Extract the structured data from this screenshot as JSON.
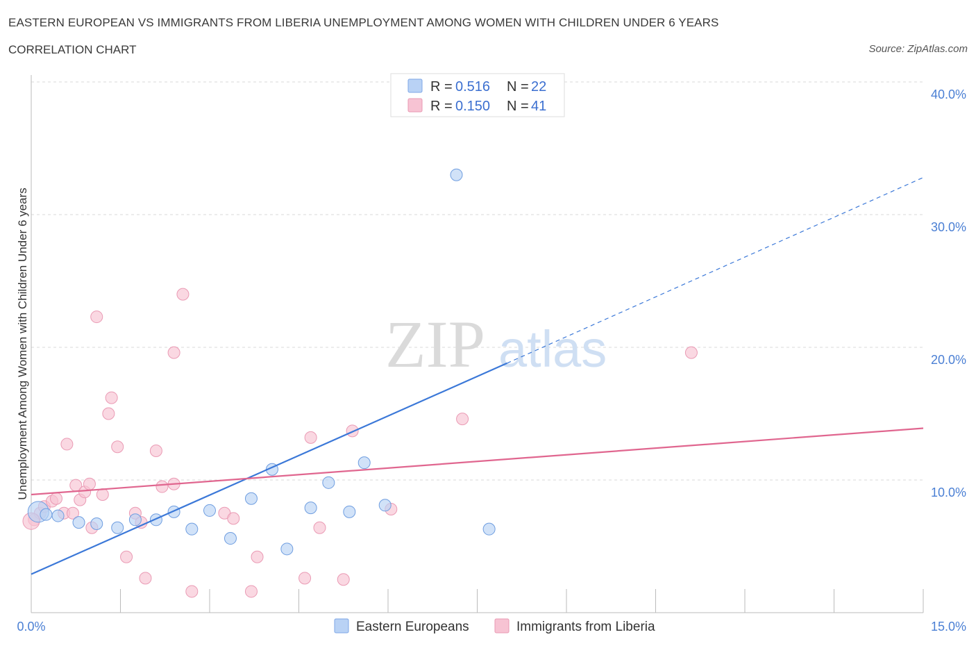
{
  "header": {
    "title": "EASTERN EUROPEAN VS IMMIGRANTS FROM LIBERIA UNEMPLOYMENT AMONG WOMEN WITH CHILDREN UNDER 6 YEARS",
    "subtitle": "CORRELATION CHART",
    "source": "Source: ZipAtlas.com"
  },
  "watermark": {
    "zip": "ZIP",
    "atlas": "atlas"
  },
  "colors": {
    "blue": "#3b78d8",
    "blue_fill": "#b9d2f5",
    "pink": "#e0668f",
    "pink_fill": "#f7c3d3",
    "tick_blue": "#4a7fd4"
  },
  "legend": {
    "row1": {
      "r_label": "R =",
      "r_value": "0.516",
      "n_label": "N =",
      "n_value": "22"
    },
    "row2": {
      "r_label": "R =",
      "r_value": "0.150",
      "n_label": "N =",
      "n_value": "41"
    }
  },
  "chart_data": {
    "type": "scatter",
    "xlabel": "",
    "ylabel": "Unemployment Among Women with Children Under 6 years",
    "xlim": [
      0,
      15
    ],
    "ylim": [
      0,
      40
    ],
    "x_tick_labels": [
      "0.0%",
      "15.0%"
    ],
    "y_ticks": [
      10,
      20,
      30,
      40
    ],
    "y_tick_labels": [
      "10.0%",
      "20.0%",
      "30.0%",
      "40.0%"
    ],
    "grid": true,
    "legend_position": "top-center",
    "series": [
      {
        "name": "Eastern Europeans",
        "color": "#3b78d8",
        "R": 0.516,
        "N": 22,
        "points": [
          [
            0.12,
            7.6
          ],
          [
            0.25,
            7.4
          ],
          [
            0.45,
            7.3
          ],
          [
            0.8,
            6.8
          ],
          [
            1.1,
            6.7
          ],
          [
            1.45,
            6.4
          ],
          [
            1.75,
            7.0
          ],
          [
            2.1,
            7.0
          ],
          [
            2.4,
            7.6
          ],
          [
            2.7,
            6.3
          ],
          [
            3.0,
            7.7
          ],
          [
            3.35,
            5.6
          ],
          [
            3.7,
            8.6
          ],
          [
            4.05,
            10.8
          ],
          [
            4.3,
            4.8
          ],
          [
            4.7,
            7.9
          ],
          [
            5.0,
            9.8
          ],
          [
            5.35,
            7.6
          ],
          [
            5.6,
            11.3
          ],
          [
            5.95,
            8.1
          ],
          [
            7.15,
            33.0
          ],
          [
            7.7,
            6.3
          ]
        ],
        "trend": {
          "x0": 0,
          "y0": 2.9,
          "x1": 8.0,
          "y1": 18.8,
          "dash_x1": 15,
          "dash_y1": 32.8
        }
      },
      {
        "name": "Immigrants from Liberia",
        "color": "#e0668f",
        "R": 0.15,
        "N": 41,
        "points": [
          [
            0.05,
            7.0
          ],
          [
            0.15,
            7.5
          ],
          [
            0.22,
            8.0
          ],
          [
            0.35,
            8.4
          ],
          [
            0.42,
            8.6
          ],
          [
            0.55,
            7.5
          ],
          [
            0.6,
            12.7
          ],
          [
            0.7,
            7.5
          ],
          [
            0.75,
            9.6
          ],
          [
            0.82,
            8.5
          ],
          [
            0.9,
            9.1
          ],
          [
            0.98,
            9.7
          ],
          [
            1.02,
            6.4
          ],
          [
            1.1,
            22.3
          ],
          [
            1.2,
            8.9
          ],
          [
            1.3,
            15.0
          ],
          [
            1.35,
            16.2
          ],
          [
            1.45,
            12.5
          ],
          [
            1.6,
            4.2
          ],
          [
            1.75,
            7.5
          ],
          [
            1.85,
            6.8
          ],
          [
            1.92,
            2.6
          ],
          [
            2.1,
            12.2
          ],
          [
            2.2,
            9.5
          ],
          [
            2.4,
            9.7
          ],
          [
            2.4,
            19.6
          ],
          [
            2.55,
            24.0
          ],
          [
            2.7,
            1.6
          ],
          [
            3.25,
            7.5
          ],
          [
            3.4,
            7.1
          ],
          [
            3.7,
            1.6
          ],
          [
            3.8,
            4.2
          ],
          [
            4.6,
            2.6
          ],
          [
            4.7,
            13.2
          ],
          [
            4.85,
            6.4
          ],
          [
            5.25,
            2.5
          ],
          [
            5.4,
            13.7
          ],
          [
            6.05,
            7.8
          ],
          [
            7.25,
            14.6
          ],
          [
            11.1,
            19.6
          ],
          [
            0.0,
            6.9
          ]
        ],
        "trend": {
          "x0": 0,
          "y0": 8.9,
          "x1": 15,
          "y1": 13.9
        }
      }
    ]
  },
  "bottom_legend": {
    "items": [
      {
        "label": "Eastern Europeans"
      },
      {
        "label": "Immigrants from Liberia"
      }
    ]
  }
}
